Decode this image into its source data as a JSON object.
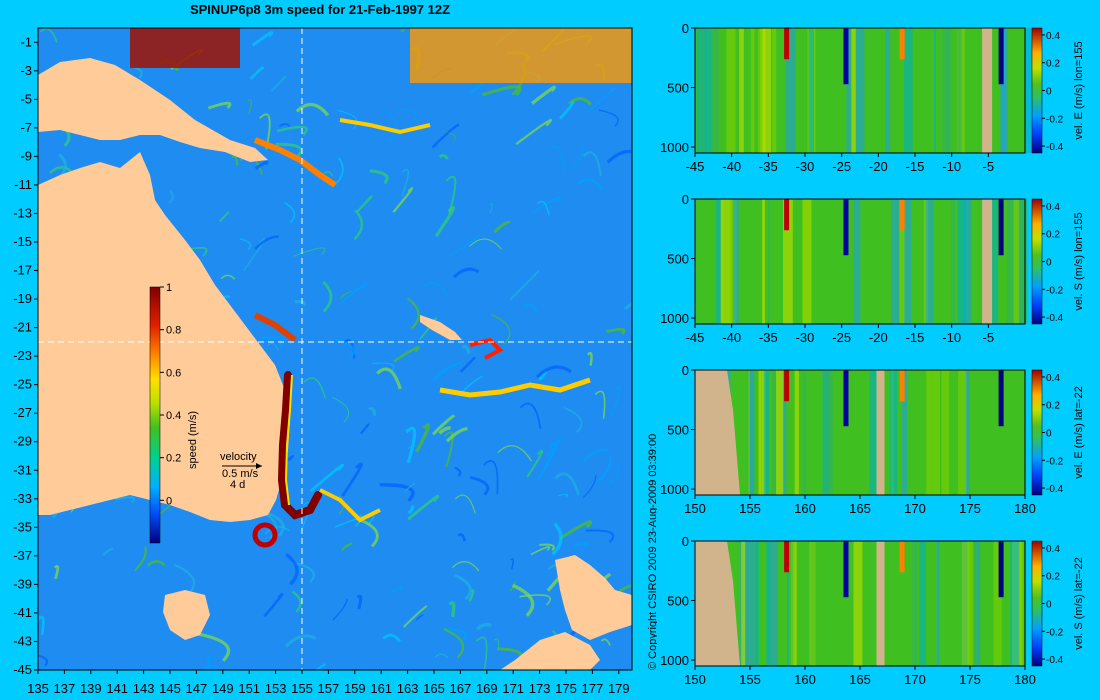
{
  "title": "SPINUP6p8 3m speed for 21-Feb-1997 12Z",
  "copyright": "© Copyright CSIRO 2009   23-Aug-2009 03:39:00",
  "colors": {
    "background": "#00ccff",
    "land": "#ffcc99",
    "section_land": "#d2b48c",
    "ocean_base": "#1e8cf0"
  },
  "map": {
    "x_ticks": [
      "135",
      "137",
      "139",
      "141",
      "143",
      "145",
      "147",
      "149",
      "151",
      "153",
      "155",
      "157",
      "159",
      "161",
      "163",
      "165",
      "167",
      "169",
      "171",
      "173",
      "175",
      "177",
      "179"
    ],
    "y_ticks": [
      "-1",
      "-3",
      "-5",
      "-7",
      "-9",
      "-11",
      "-13",
      "-15",
      "-17",
      "-19",
      "-21",
      "-23",
      "-25",
      "-27",
      "-29",
      "-31",
      "-33",
      "-35",
      "-37",
      "-39",
      "-41",
      "-43",
      "-45"
    ],
    "lon_range": [
      135,
      180
    ],
    "lat_range": [
      -45,
      0
    ],
    "section_lon": 155,
    "section_lat": -22,
    "colorbar": {
      "label": "speed (m/s)",
      "ticks": [
        "1",
        "0.8",
        "0.6",
        "0.4",
        "0.2",
        "0"
      ],
      "range": [
        -0.2,
        1.0
      ]
    },
    "velocity_legend": {
      "title": "velocity",
      "scale": "0.5 m/s",
      "period": "4 d"
    }
  },
  "chart_data": [
    {
      "type": "heatmap",
      "title": "SPINUP6p8 3m speed for 21-Feb-1997 12Z",
      "xlabel": "",
      "ylabel": "",
      "xlim": [
        135,
        180
      ],
      "ylim": [
        -45,
        0
      ],
      "colorbar_label": "speed (m/s)",
      "colorbar_range": [
        -0.2,
        1.0
      ]
    },
    {
      "type": "heatmap",
      "label": "vel. E (m/s) lon=155",
      "x_ticks": [
        "-45",
        "-40",
        "-35",
        "-30",
        "-25",
        "-20",
        "-15",
        "-10",
        "-5"
      ],
      "y_ticks": [
        "0",
        "500",
        "1000"
      ],
      "xlim": [
        -45,
        0
      ],
      "ylim": [
        1050,
        0
      ],
      "cbar_ticks": [
        "0.4",
        "0.2",
        "0",
        "-0.2",
        "-0.4"
      ],
      "clim": [
        -0.45,
        0.45
      ]
    },
    {
      "type": "heatmap",
      "label": "vel. S (m/s) lon=155",
      "x_ticks": [
        "-45",
        "-40",
        "-35",
        "-30",
        "-25",
        "-20",
        "-15",
        "-10",
        "-5"
      ],
      "y_ticks": [
        "0",
        "500",
        "1000"
      ],
      "xlim": [
        -45,
        0
      ],
      "ylim": [
        1050,
        0
      ],
      "cbar_ticks": [
        "0.4",
        "0.2",
        "0",
        "-0.2",
        "-0.4"
      ],
      "clim": [
        -0.45,
        0.45
      ]
    },
    {
      "type": "heatmap",
      "label": "vel. E (m/s) lat=-22",
      "x_ticks": [
        "150",
        "155",
        "160",
        "165",
        "170",
        "175",
        "180"
      ],
      "y_ticks": [
        "0",
        "500",
        "1000"
      ],
      "xlim": [
        150,
        180
      ],
      "ylim": [
        1050,
        0
      ],
      "cbar_ticks": [
        "0.4",
        "0.2",
        "0",
        "-0.2",
        "-0.4"
      ],
      "clim": [
        -0.45,
        0.45
      ]
    },
    {
      "type": "heatmap",
      "label": "vel. S (m/s) lat=-22",
      "x_ticks": [
        "150",
        "155",
        "160",
        "165",
        "170",
        "175",
        "180"
      ],
      "y_ticks": [
        "0",
        "500",
        "1000"
      ],
      "xlim": [
        150,
        180
      ],
      "ylim": [
        1050,
        0
      ],
      "cbar_ticks": [
        "0.4",
        "0.2",
        "0",
        "-0.2",
        "-0.4"
      ],
      "clim": [
        -0.45,
        0.45
      ]
    }
  ]
}
